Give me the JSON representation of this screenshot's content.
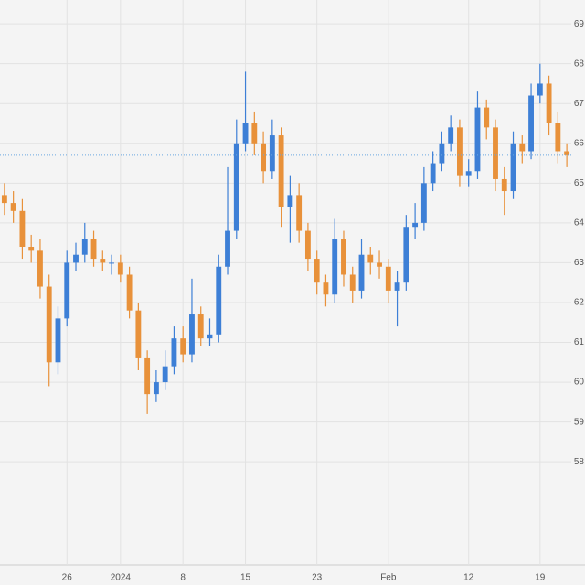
{
  "chart_data": {
    "type": "candlestick",
    "up_color": "#3d7fd6",
    "down_color": "#e8913a",
    "grid": true,
    "open": [
      64.7,
      64.5,
      64.3,
      63.4,
      63.3,
      62.4,
      60.5,
      61.6,
      63.0,
      63.2,
      63.6,
      63.1,
      63.0,
      63.0,
      62.7,
      61.8,
      60.6,
      59.7,
      60.0,
      60.4,
      61.1,
      60.7,
      61.7,
      61.1,
      61.2,
      62.9,
      63.8,
      66.0,
      66.5,
      66.0,
      65.3,
      66.2,
      64.4,
      64.7,
      63.8,
      63.1,
      62.5,
      62.2,
      63.6,
      62.7,
      62.3,
      63.2,
      63.0,
      62.9,
      62.3,
      62.5,
      63.9,
      64.0,
      65.0,
      65.5,
      66.0,
      66.4,
      65.2,
      65.3,
      66.9,
      66.4,
      65.1,
      64.8,
      66.0,
      65.8,
      67.2,
      67.5,
      66.5,
      65.8
    ],
    "high": [
      65.0,
      64.8,
      64.6,
      63.7,
      63.6,
      62.7,
      61.9,
      63.3,
      63.5,
      64.0,
      63.8,
      63.3,
      63.2,
      63.2,
      62.9,
      62.0,
      60.8,
      60.3,
      60.8,
      61.4,
      61.4,
      62.6,
      61.9,
      61.6,
      63.2,
      65.4,
      66.6,
      67.8,
      66.8,
      66.3,
      66.6,
      66.4,
      65.2,
      65.0,
      64.0,
      63.3,
      62.7,
      64.1,
      63.8,
      62.9,
      63.6,
      63.4,
      63.3,
      63.1,
      62.8,
      64.2,
      64.5,
      65.4,
      65.8,
      66.3,
      66.7,
      66.6,
      65.6,
      67.3,
      67.1,
      66.6,
      65.4,
      66.3,
      66.2,
      67.5,
      68.0,
      67.7,
      66.8,
      66.0
    ],
    "low": [
      64.2,
      64.0,
      63.1,
      63.0,
      62.1,
      59.9,
      60.2,
      61.4,
      62.8,
      63.0,
      62.9,
      62.8,
      62.7,
      62.5,
      61.6,
      60.3,
      59.2,
      59.5,
      59.8,
      60.2,
      60.5,
      60.5,
      60.9,
      60.9,
      61.0,
      62.7,
      63.6,
      65.8,
      65.7,
      65.0,
      65.1,
      63.9,
      63.5,
      63.5,
      62.8,
      62.2,
      61.9,
      62.0,
      62.4,
      62.0,
      62.1,
      62.7,
      62.6,
      62.0,
      61.4,
      62.3,
      63.6,
      63.8,
      64.8,
      65.3,
      65.8,
      64.9,
      64.9,
      65.1,
      66.1,
      64.8,
      64.2,
      64.6,
      65.5,
      65.6,
      67.0,
      66.2,
      65.5,
      65.4
    ],
    "close": [
      64.5,
      64.3,
      63.4,
      63.3,
      62.4,
      60.5,
      61.6,
      63.0,
      63.2,
      63.6,
      63.1,
      63.0,
      63.0,
      62.7,
      61.8,
      60.6,
      59.7,
      60.0,
      60.4,
      61.1,
      60.7,
      61.7,
      61.1,
      61.2,
      62.9,
      63.8,
      66.0,
      66.5,
      66.0,
      65.3,
      66.2,
      64.4,
      64.7,
      63.8,
      63.1,
      62.5,
      62.2,
      63.6,
      62.7,
      62.3,
      63.2,
      63.0,
      62.9,
      62.3,
      62.5,
      63.9,
      64.0,
      65.0,
      65.5,
      66.0,
      66.4,
      65.2,
      65.3,
      66.9,
      66.4,
      65.1,
      64.8,
      66.0,
      65.8,
      67.2,
      67.5,
      66.5,
      65.8,
      65.7
    ],
    "xlim": [
      -0.5,
      63.5
    ],
    "xticks": [
      {
        "value": 7,
        "label": "26"
      },
      {
        "value": 13,
        "label": "2024"
      },
      {
        "value": 20,
        "label": "8"
      },
      {
        "value": 27,
        "label": "15"
      },
      {
        "value": 35,
        "label": "23"
      },
      {
        "value": 43,
        "label": "Feb"
      },
      {
        "value": 52,
        "label": "12"
      },
      {
        "value": 60,
        "label": "19"
      }
    ],
    "ylim": [
      57.2,
      69.6
    ],
    "yticks": [
      58,
      59,
      60,
      61,
      62,
      63,
      64,
      65,
      66,
      67,
      68,
      69
    ]
  }
}
